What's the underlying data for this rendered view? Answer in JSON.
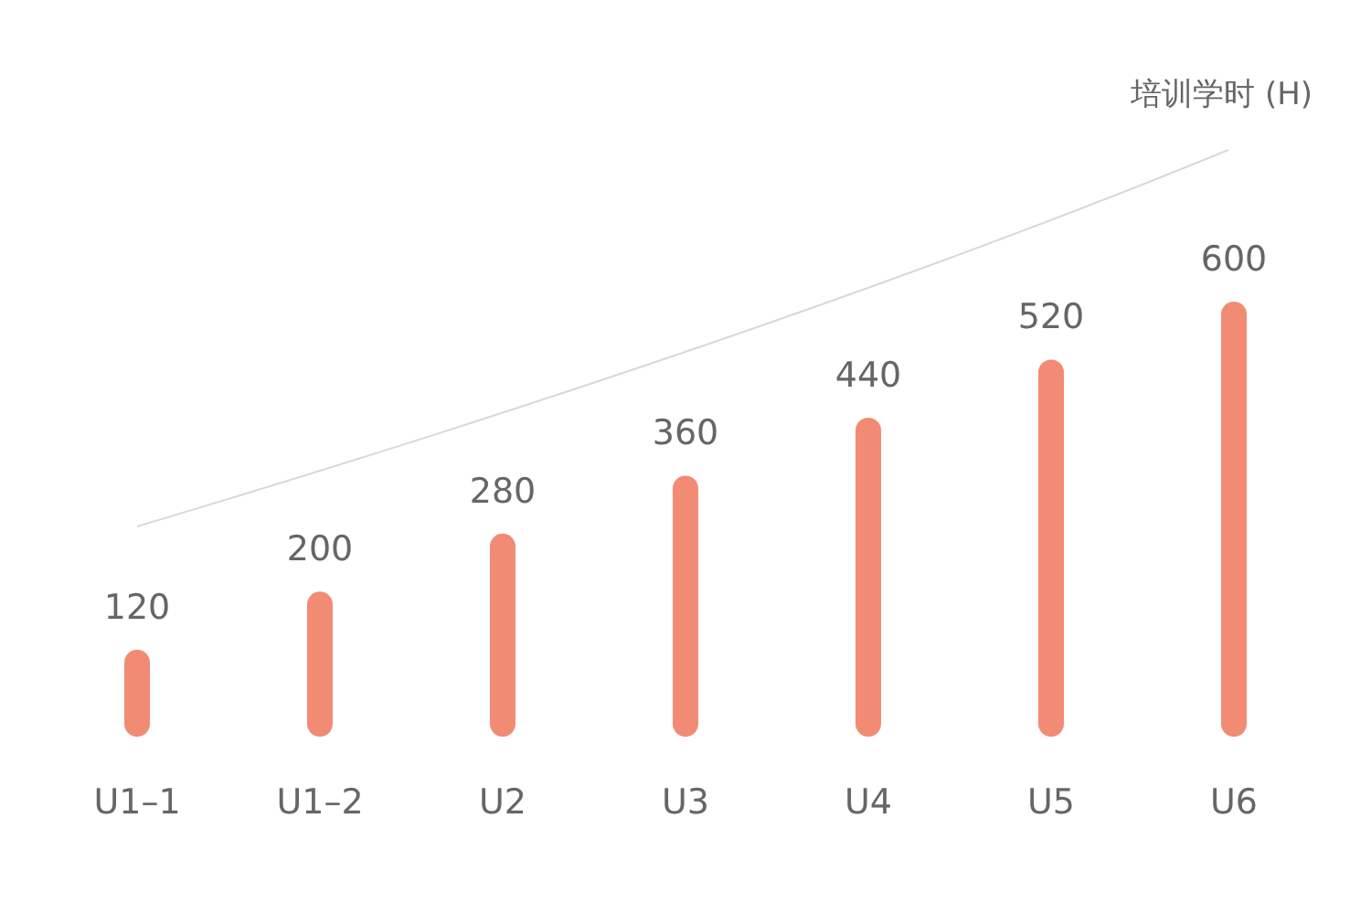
{
  "chart_data": {
    "type": "bar",
    "annotations": [
      "培训学时 (H)"
    ],
    "categories": [
      "U1–1",
      "U1–2",
      "U2",
      "U3",
      "U4",
      "U5",
      "U6"
    ],
    "values": [
      120,
      200,
      280,
      360,
      440,
      520,
      600
    ],
    "color": "#f28b74",
    "data_labels": true
  }
}
